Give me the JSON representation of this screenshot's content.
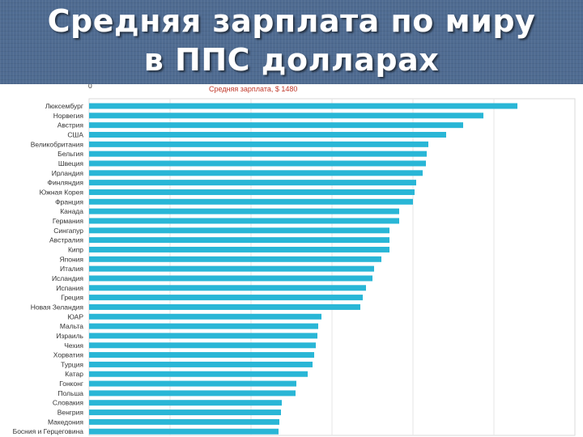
{
  "slide": {
    "title_line1": "Средняя зарплата по миру",
    "title_line2": "в ППС долларах"
  },
  "colors": {
    "header_bg": "#4f6b91",
    "bar": "#29b6d6",
    "subtitle": "#c0392b"
  },
  "chart_data": {
    "type": "bar",
    "orientation": "horizontal",
    "title": "Средняя зарплата, $ 1480",
    "axis_top_label": "0",
    "xlim": [
      0,
      6000
    ],
    "grid": true,
    "categories": [
      "Люксембург",
      "Норвегия",
      "Австрия",
      "США",
      "Великобритания",
      "Бельгия",
      "Швеция",
      "Ирландия",
      "Финляндия",
      "Южная Корея",
      "Франция",
      "Канада",
      "Германия",
      "Сингапур",
      "Австралия",
      "Кипр",
      "Япония",
      "Италия",
      "Исландия",
      "Испания",
      "Греция",
      "Новая Зеландия",
      "ЮАР",
      "Мальта",
      "Израиль",
      "Чехия",
      "Хорватия",
      "Турция",
      "Катар",
      "Гонконг",
      "Польша",
      "Словакия",
      "Венгрия",
      "Македония",
      "Босния и Герцеговина"
    ],
    "values": [
      5290,
      4870,
      4620,
      4410,
      4190,
      4170,
      4160,
      4120,
      4040,
      4020,
      4000,
      3830,
      3830,
      3710,
      3710,
      3710,
      3610,
      3520,
      3500,
      3420,
      3380,
      3350,
      2870,
      2830,
      2820,
      2800,
      2780,
      2760,
      2700,
      2560,
      2550,
      2380,
      2370,
      2350,
      2340
    ]
  }
}
